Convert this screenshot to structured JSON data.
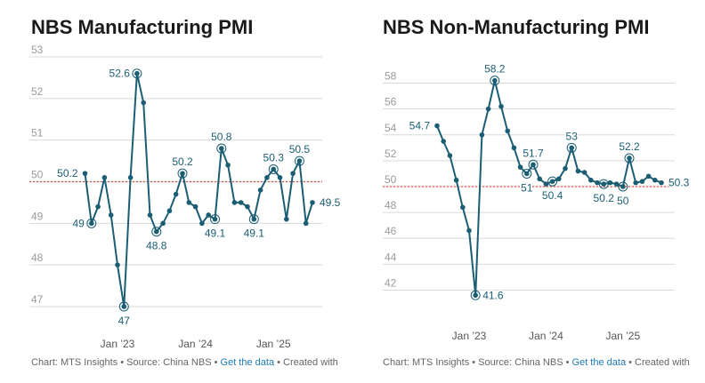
{
  "charts": [
    {
      "title": "NBS Manufacturing PMI",
      "footer": {
        "prefix": "Chart: MTS Insights • Source: China NBS • ",
        "link": "Get the data",
        "suffix": " • Created with"
      }
    },
    {
      "title": "NBS Non-Manufacturing PMI",
      "footer": {
        "prefix": "Chart: MTS Insights • Source: China NBS • ",
        "link": "Get the data",
        "suffix": " • Created with"
      }
    }
  ],
  "colors": {
    "line": "#1b5e74",
    "reference": "#e0533e",
    "grid": "#d9d9d9",
    "label": "#1b5e74"
  },
  "chart_data": [
    {
      "type": "line",
      "title": "NBS Manufacturing PMI",
      "x_ticks": [
        "Jan ’23",
        "Jan ’24",
        "Jan ’25"
      ],
      "x_tick_index": [
        5,
        17,
        29
      ],
      "ylim": [
        47,
        53
      ],
      "y_ticks": [
        47,
        48,
        49,
        50,
        51,
        52,
        53
      ],
      "reference_line": 50,
      "grid": true,
      "series": [
        {
          "values": [
            50.2,
            49.0,
            49.4,
            50.1,
            49.2,
            48.0,
            47.0,
            50.1,
            52.6,
            51.9,
            49.2,
            48.8,
            49.0,
            49.3,
            49.7,
            50.2,
            49.5,
            49.4,
            49.0,
            49.2,
            49.1,
            50.8,
            50.4,
            49.5,
            49.5,
            49.4,
            49.1,
            49.8,
            50.1,
            50.3,
            50.1,
            49.1,
            50.2,
            50.5,
            49.0,
            49.5
          ]
        }
      ],
      "annotations": [
        {
          "index": 0,
          "label": "50.2",
          "pos": "left",
          "circle": false
        },
        {
          "index": 1,
          "label": "49",
          "pos": "left",
          "circle": true
        },
        {
          "index": 6,
          "label": "47",
          "pos": "below",
          "circle": true
        },
        {
          "index": 8,
          "label": "52.6",
          "pos": "left",
          "circle": true
        },
        {
          "index": 11,
          "label": "48.8",
          "pos": "below",
          "circle": true
        },
        {
          "index": 15,
          "label": "50.2",
          "pos": "above",
          "circle": true
        },
        {
          "index": 20,
          "label": "49.1",
          "pos": "below",
          "circle": true
        },
        {
          "index": 21,
          "label": "50.8",
          "pos": "above",
          "circle": true
        },
        {
          "index": 26,
          "label": "49.1",
          "pos": "below",
          "circle": true
        },
        {
          "index": 29,
          "label": "50.3",
          "pos": "above",
          "circle": true
        },
        {
          "index": 33,
          "label": "50.5",
          "pos": "above",
          "circle": true
        },
        {
          "index": 35,
          "label": "49.5",
          "pos": "right",
          "circle": false
        }
      ]
    },
    {
      "type": "line",
      "title": "NBS Non-Manufacturing PMI",
      "x_ticks": [
        "Jan ’23",
        "Jan ’24",
        "Jan ’25"
      ],
      "x_tick_index": [
        5,
        17,
        29
      ],
      "ylim": [
        41,
        59
      ],
      "y_ticks": [
        42,
        44,
        46,
        48,
        50,
        52,
        54,
        56,
        58
      ],
      "reference_line": 50,
      "grid": true,
      "series": [
        {
          "values": [
            54.7,
            53.5,
            52.4,
            50.5,
            48.4,
            46.6,
            41.6,
            54.0,
            56.0,
            58.2,
            56.2,
            54.3,
            53.0,
            51.5,
            51.0,
            51.7,
            50.6,
            50.2,
            50.4,
            50.6,
            51.4,
            53.0,
            51.2,
            51.1,
            50.5,
            50.3,
            50.2,
            50.3,
            50.2,
            50.0,
            52.2,
            50.3,
            50.4,
            50.8,
            50.5,
            50.3
          ]
        }
      ],
      "annotations": [
        {
          "index": 0,
          "label": "54.7",
          "pos": "left",
          "circle": false
        },
        {
          "index": 6,
          "label": "41.6",
          "pos": "right",
          "circle": true
        },
        {
          "index": 9,
          "label": "58.2",
          "pos": "above",
          "circle": true
        },
        {
          "index": 14,
          "label": "51",
          "pos": "below",
          "circle": true
        },
        {
          "index": 15,
          "label": "51.7",
          "pos": "above",
          "circle": true
        },
        {
          "index": 18,
          "label": "50.4",
          "pos": "below",
          "circle": true
        },
        {
          "index": 21,
          "label": "53",
          "pos": "above",
          "circle": true
        },
        {
          "index": 26,
          "label": "50.2",
          "pos": "below",
          "circle": true
        },
        {
          "index": 29,
          "label": "50",
          "pos": "below",
          "circle": true
        },
        {
          "index": 30,
          "label": "52.2",
          "pos": "above",
          "circle": true
        },
        {
          "index": 35,
          "label": "50.3",
          "pos": "right",
          "circle": false
        }
      ]
    }
  ]
}
